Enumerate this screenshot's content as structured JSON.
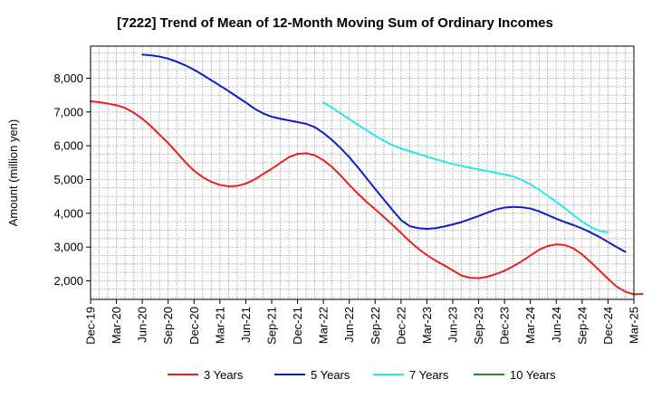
{
  "chart_data": {
    "type": "line",
    "title": "[7222]  Trend of Mean of 12-Month Moving Sum of Ordinary Incomes",
    "xlabel": "",
    "ylabel": "Amount (million yen)",
    "ylim": [
      1450,
      8950
    ],
    "y_ticks": [
      2000,
      3000,
      4000,
      5000,
      6000,
      7000,
      8000
    ],
    "y_tick_labels": [
      "2,000",
      "3,000",
      "4,000",
      "5,000",
      "6,000",
      "7,000",
      "8,000"
    ],
    "x_tick_labels": [
      "Dec-19",
      "Mar-20",
      "Jun-20",
      "Sep-20",
      "Dec-20",
      "Mar-21",
      "Jun-21",
      "Sep-21",
      "Dec-21",
      "Mar-22",
      "Jun-22",
      "Sep-22",
      "Dec-22",
      "Mar-23",
      "Jun-23",
      "Sep-23",
      "Dec-23",
      "Mar-24",
      "Jun-24",
      "Sep-24",
      "Dec-24",
      "Mar-25"
    ],
    "grid": true,
    "legend_position": "bottom",
    "series": [
      {
        "name": "3 Years",
        "color": "#e8201e",
        "start_index": 0,
        "values": [
          7320,
          7290,
          7250,
          7200,
          7120,
          6980,
          6800,
          6580,
          6330,
          6080,
          5800,
          5510,
          5260,
          5070,
          4930,
          4840,
          4800,
          4810,
          4880,
          5000,
          5160,
          5320,
          5490,
          5660,
          5760,
          5780,
          5720,
          5570,
          5370,
          5120,
          4840,
          4580,
          4340,
          4120,
          3890,
          3660,
          3420,
          3170,
          2950,
          2760,
          2600,
          2460,
          2310,
          2160,
          2090,
          2080,
          2120,
          2200,
          2300,
          2430,
          2580,
          2750,
          2920,
          3030,
          3080,
          3060,
          2960,
          2780,
          2550,
          2310,
          2060,
          1830,
          1680,
          1600,
          1610
        ]
      },
      {
        "name": "5 Years",
        "color": "#0d1fc9",
        "start_index": 6,
        "values": [
          8700,
          8680,
          8640,
          8580,
          8490,
          8380,
          8250,
          8100,
          7940,
          7780,
          7620,
          7450,
          7280,
          7100,
          6960,
          6860,
          6800,
          6750,
          6700,
          6650,
          6550,
          6380,
          6170,
          5930,
          5660,
          5360,
          5040,
          4720,
          4410,
          4100,
          3800,
          3620,
          3560,
          3540,
          3560,
          3610,
          3670,
          3740,
          3830,
          3920,
          4020,
          4110,
          4170,
          4190,
          4180,
          4140,
          4060,
          3950,
          3840,
          3740,
          3650,
          3550,
          3430,
          3300,
          3150,
          3000,
          2860
        ]
      },
      {
        "name": "7 Years",
        "color": "#27e8ec",
        "start_index": 27,
        "values": [
          7280,
          7130,
          6960,
          6790,
          6620,
          6460,
          6300,
          6150,
          6020,
          5920,
          5840,
          5760,
          5680,
          5600,
          5530,
          5460,
          5400,
          5350,
          5300,
          5250,
          5200,
          5150,
          5090,
          4990,
          4860,
          4700,
          4520,
          4340,
          4150,
          3950,
          3750,
          3590,
          3480,
          3440
        ]
      },
      {
        "name": "10 Years",
        "color": "#2a8c2a",
        "start_index": 0,
        "values": []
      }
    ]
  }
}
